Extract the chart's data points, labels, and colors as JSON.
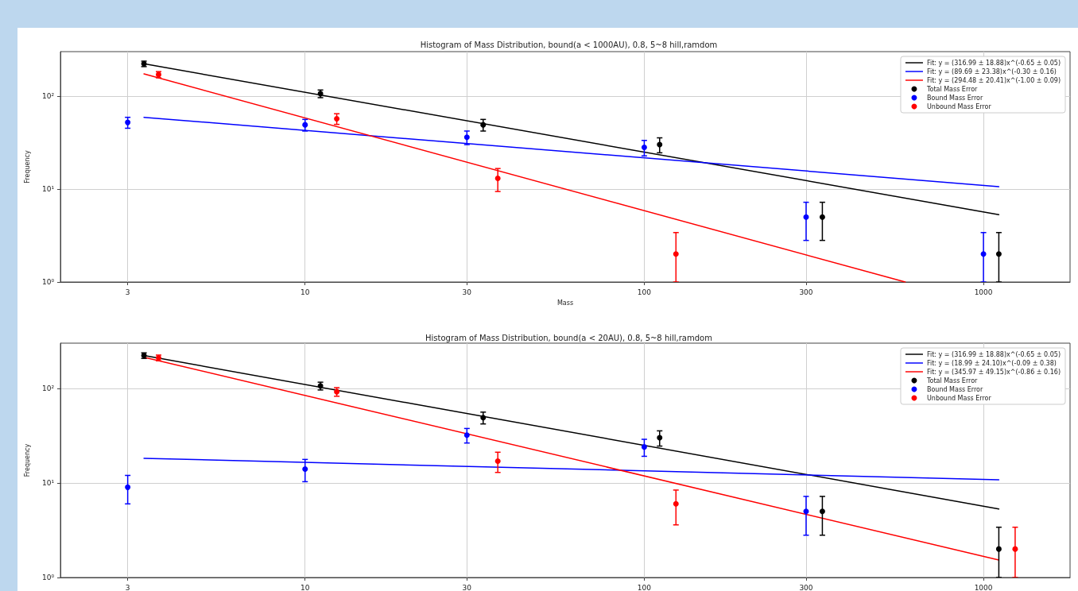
{
  "chart_data": [
    {
      "type": "line",
      "title": "Histogram of Mass Distribution, bound(a < 1000AU), 0.8, 5~8 hill,ramdom",
      "xlabel": "Mass",
      "ylabel": "Frequency",
      "log": "xy",
      "xlim": [
        1.9,
        1800
      ],
      "ylim": [
        1,
        300
      ],
      "xticks": [
        3,
        10,
        30,
        100,
        300,
        1000
      ],
      "yticks": [
        {
          "value": 1,
          "label": "10⁰"
        },
        {
          "value": 10,
          "label": "10¹"
        },
        {
          "value": 100,
          "label": "10²"
        }
      ],
      "grid": true,
      "legend": "top right",
      "series": [
        {
          "name": "Fit: y = (316.99 ± 18.88)x^(-0.65 ± 0.05)",
          "marker": "none",
          "color": "#000000",
          "x": [
            3.35,
            1110
          ],
          "values": [
            222,
            5.3
          ]
        },
        {
          "name": "Fit: y = (89.69 ± 23.38)x^(-0.30 ± 0.16)",
          "marker": "none",
          "color": "#0000ff",
          "x": [
            3.35,
            1110
          ],
          "values": [
            59,
            10.6
          ]
        },
        {
          "name": "Fit: y = (294.48 ± 20.41)x^(-1.00 ± 0.09)",
          "marker": "none",
          "color": "#ff0000",
          "x": [
            3.35,
            588
          ],
          "values": [
            173,
            1
          ]
        },
        {
          "name": "Total Mass Error",
          "type": "scatter",
          "marker": "circle",
          "color": "#000000",
          "x": [
            3.35,
            11.1,
            33.5,
            111,
            335,
            1110
          ],
          "values": [
            222,
            106,
            49,
            30,
            5,
            2
          ],
          "errors": [
            15,
            10,
            7,
            5.5,
            2.2,
            [
              1,
              3.4
            ]
          ]
        },
        {
          "name": "Bound Mass Error",
          "type": "scatter",
          "marker": "circle",
          "color": "#0000ff",
          "x": [
            3,
            10,
            30,
            100,
            300,
            1000
          ],
          "values": [
            52,
            49,
            36,
            28,
            5,
            2
          ],
          "errors": [
            7,
            7,
            6,
            5.3,
            2.2,
            [
              1,
              3.4
            ]
          ]
        },
        {
          "name": "Unbound Mass Error",
          "type": "scatter",
          "marker": "circle",
          "color": "#ff0000",
          "x": [
            3.7,
            12.4,
            37,
            124
          ],
          "values": [
            170,
            57,
            13,
            2
          ],
          "errors": [
            13,
            7.5,
            3.6,
            [
              1,
              3.4
            ]
          ]
        }
      ]
    },
    {
      "type": "line",
      "title": "Histogram of Mass Distribution, bound(a < 20AU), 0.8, 5~8 hill,ramdom",
      "ylabel": "Frequency",
      "log": "xy",
      "xlim": [
        1.9,
        1800
      ],
      "ylim": [
        1,
        300
      ],
      "xticks": [
        3,
        10,
        30,
        100,
        300,
        1000
      ],
      "yticks": [
        {
          "value": 1,
          "label": "10⁰"
        },
        {
          "value": 10,
          "label": "10¹"
        },
        {
          "value": 100,
          "label": "10²"
        }
      ],
      "grid": true,
      "legend": "top right",
      "series": [
        {
          "name": "Fit: y = (316.99 ± 18.88)x^(-0.65 ± 0.05)",
          "marker": "none",
          "color": "#000000",
          "x": [
            3.35,
            1110
          ],
          "values": [
            222,
            5.3
          ]
        },
        {
          "name": "Fit: y = (18.99 ± 24.10)x^(-0.09 ± 0.38)",
          "marker": "none",
          "color": "#0000ff",
          "x": [
            3.35,
            1110
          ],
          "values": [
            18.2,
            10.8
          ]
        },
        {
          "name": "Fit: y = (345.97 ± 49.15)x^(-0.86 ± 0.16)",
          "marker": "none",
          "color": "#ff0000",
          "x": [
            3.35,
            1110
          ],
          "values": [
            213,
            1.53
          ]
        },
        {
          "name": "Total Mass Error",
          "type": "scatter",
          "marker": "circle",
          "color": "#000000",
          "x": [
            3.35,
            11.1,
            33.5,
            111,
            335,
            1110
          ],
          "values": [
            222,
            106,
            49,
            30,
            5,
            2
          ],
          "errors": [
            15,
            10,
            7,
            5.5,
            2.2,
            [
              1,
              3.4
            ]
          ]
        },
        {
          "name": "Bound Mass Error",
          "type": "scatter",
          "marker": "circle",
          "color": "#0000ff",
          "x": [
            3,
            10,
            30,
            100,
            300
          ],
          "values": [
            9,
            14,
            32,
            24,
            5
          ],
          "errors": [
            3,
            3.7,
            5.6,
            4.9,
            2.2
          ]
        },
        {
          "name": "Unbound Mass Error",
          "type": "scatter",
          "marker": "circle",
          "color": "#ff0000",
          "x": [
            3.7,
            12.4,
            37,
            124,
            1240
          ],
          "values": [
            210,
            92,
            17,
            6,
            2
          ],
          "errors": [
            14.5,
            9.6,
            4.1,
            2.4,
            [
              1,
              3.4
            ]
          ]
        }
      ]
    }
  ]
}
